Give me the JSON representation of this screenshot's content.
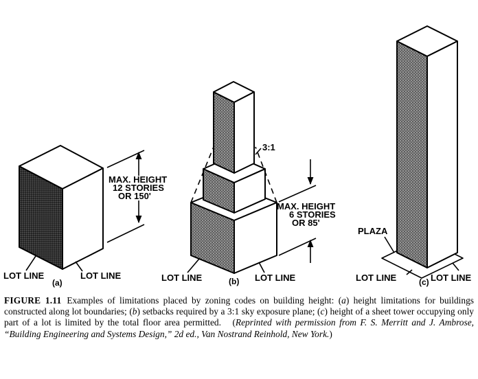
{
  "figure": {
    "a": {
      "height_label_lines": [
        "MAX. HEIGHT",
        "12 STORIES",
        "OR 150'"
      ],
      "lot_line_left": "LOT LINE",
      "lot_line_right": "LOT LINE",
      "panel_label": "(a)"
    },
    "b": {
      "slope_label": "3:1",
      "height_label_lines": [
        "MAX. HEIGHT",
        "6 STORIES",
        "OR 85'"
      ],
      "lot_line_left": "LOT LINE",
      "lot_line_right": "LOT LINE",
      "panel_label": "(b)"
    },
    "c": {
      "plaza_label": "PLAZA",
      "lot_line_left": "LOT LINE",
      "lot_line_right": "LOT LINE",
      "panel_label": "(c)"
    }
  },
  "caption": {
    "figure_number": "FIGURE 1.11",
    "text_1": "Examples of limitations placed by zoning codes on building height: (",
    "a_marker": "a",
    "text_2": ") height limitations for buildings constructed along lot boundaries; (",
    "b_marker": "b",
    "text_3": ") setbacks required by a 3:1 sky exposure plane; (",
    "c_marker": "c",
    "text_4": ") height of a sheet tower occupying only part of a lot is limited by the total floor area permitted.",
    "credit_open": "(",
    "credit": "Reprinted with permission from F. S. Merritt and J. Ambrose, “Building Engineering and Systems Design,” 2d ed., Van Nostrand Reinhold, New York.",
    "credit_close": ")"
  }
}
